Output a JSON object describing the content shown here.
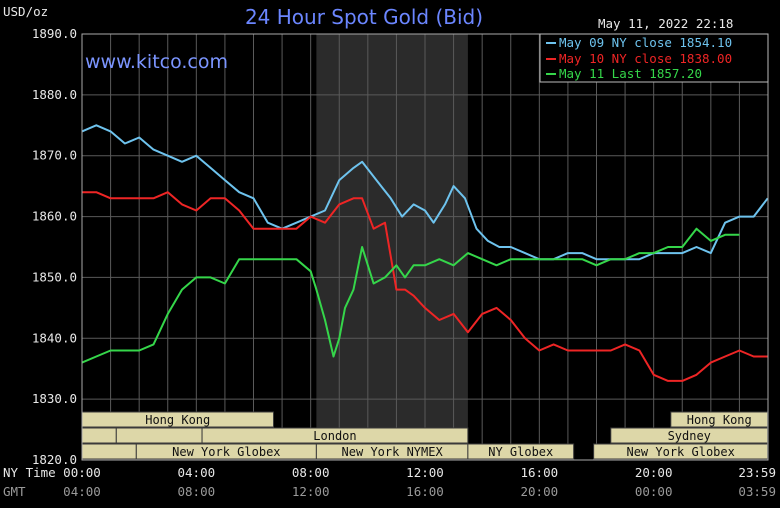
{
  "header": {
    "title": "24 Hour Spot Gold (Bid)",
    "website": "www.kitco.com",
    "timestamp": "May 11, 2022 22:18",
    "unit_label": "USD/oz"
  },
  "chart_data": {
    "type": "line",
    "title": "24 Hour Spot Gold (Bid)",
    "ylabel": "USD/oz",
    "ylim": [
      1820,
      1890
    ],
    "yticks": [
      "1890.0",
      "1880.0",
      "1870.0",
      "1860.0",
      "1850.0",
      "1840.0",
      "1830.0",
      "1820.0"
    ],
    "xlim": [
      0,
      24
    ],
    "x_tick_hours": [
      0,
      4,
      8,
      12,
      16,
      20,
      24
    ],
    "x_axis_rows": [
      {
        "label": "NY Time",
        "ticks": [
          "00:00",
          "04:00",
          "08:00",
          "12:00",
          "16:00",
          "20:00",
          "23:59"
        ]
      },
      {
        "label": "GMT",
        "ticks": [
          "04:00",
          "08:00",
          "12:00",
          "16:00",
          "20:00",
          "00:00",
          "03:59"
        ]
      }
    ],
    "grid": true,
    "legend_position": "top-right",
    "shaded_region_hours": [
      8.2,
      13.5
    ],
    "series": [
      {
        "name": "May 09 NY close 1854.10",
        "color": "#6ec3ee",
        "x": [
          0,
          0.5,
          1,
          1.5,
          2,
          2.5,
          3,
          3.5,
          4,
          4.5,
          5,
          5.5,
          6,
          6.5,
          7,
          7.5,
          8,
          8.5,
          9,
          9.5,
          9.8,
          10.3,
          10.8,
          11.2,
          11.6,
          12,
          12.3,
          12.7,
          13,
          13.4,
          13.8,
          14.2,
          14.6,
          15,
          15.5,
          16,
          16.5,
          17,
          17.5,
          18,
          18.5,
          19,
          19.5,
          20,
          20.5,
          21,
          21.5,
          22,
          22.5,
          23,
          23.5,
          23.99
        ],
        "y": [
          1874,
          1875,
          1874,
          1872,
          1873,
          1871,
          1870,
          1869,
          1870,
          1868,
          1866,
          1864,
          1863,
          1859,
          1858,
          1859,
          1860,
          1861,
          1866,
          1868,
          1869,
          1866,
          1863,
          1860,
          1862,
          1861,
          1859,
          1862,
          1865,
          1863,
          1858,
          1856,
          1855,
          1855,
          1854,
          1853,
          1853,
          1854,
          1854,
          1853,
          1853,
          1853,
          1853,
          1854,
          1854,
          1854,
          1855,
          1854,
          1859,
          1860,
          1860,
          1863
        ]
      },
      {
        "name": "May 10 NY close 1838.00",
        "color": "#ee2525",
        "x": [
          0,
          0.5,
          1,
          1.5,
          2,
          2.5,
          3,
          3.5,
          4,
          4.5,
          5,
          5.5,
          6,
          6.5,
          7,
          7.5,
          8,
          8.5,
          9,
          9.5,
          9.8,
          10.2,
          10.6,
          11,
          11.3,
          11.6,
          12,
          12.5,
          13,
          13.5,
          14,
          14.5,
          15,
          15.5,
          16,
          16.5,
          17,
          17.5,
          18,
          18.5,
          19,
          19.5,
          20,
          20.5,
          21,
          21.5,
          22,
          22.5,
          23,
          23.5,
          23.99
        ],
        "y": [
          1864,
          1864,
          1863,
          1863,
          1863,
          1863,
          1864,
          1862,
          1861,
          1863,
          1863,
          1861,
          1858,
          1858,
          1858,
          1858,
          1860,
          1859,
          1862,
          1863,
          1863,
          1858,
          1859,
          1848,
          1848,
          1847,
          1845,
          1843,
          1844,
          1841,
          1844,
          1845,
          1843,
          1840,
          1838,
          1839,
          1838,
          1838,
          1838,
          1838,
          1839,
          1838,
          1834,
          1833,
          1833,
          1834,
          1836,
          1837,
          1838,
          1837,
          1837
        ]
      },
      {
        "name": "May 11 Last 1857.20",
        "color": "#35d64a",
        "x": [
          0,
          0.5,
          1,
          1.5,
          2,
          2.5,
          3,
          3.5,
          4,
          4.5,
          5,
          5.5,
          6,
          6.5,
          7,
          7.5,
          8,
          8.2,
          8.5,
          8.8,
          9,
          9.2,
          9.5,
          9.8,
          10.2,
          10.6,
          11,
          11.3,
          11.6,
          12,
          12.5,
          13,
          13.5,
          14,
          14.5,
          15,
          15.5,
          16,
          16.5,
          17,
          17.5,
          18,
          18.5,
          19,
          19.5,
          20,
          20.5,
          21,
          21.5,
          22,
          22.5,
          23
        ],
        "y": [
          1836,
          1837,
          1838,
          1838,
          1838,
          1839,
          1844,
          1848,
          1850,
          1850,
          1849,
          1853,
          1853,
          1853,
          1853,
          1853,
          1851,
          1848,
          1843,
          1837,
          1840,
          1845,
          1848,
          1855,
          1849,
          1850,
          1852,
          1850,
          1852,
          1852,
          1853,
          1852,
          1854,
          1853,
          1852,
          1853,
          1853,
          1853,
          1853,
          1853,
          1853,
          1852,
          1853,
          1853,
          1854,
          1854,
          1855,
          1855,
          1858,
          1856,
          1857,
          1857
        ]
      }
    ]
  },
  "sessions": [
    {
      "label": "Hong Kong",
      "start_hour": 0,
      "end_hour": 6.7,
      "row": 0
    },
    {
      "label": "",
      "start_hour": 0,
      "end_hour": 1.2,
      "row": 1
    },
    {
      "label": "",
      "start_hour": 1.2,
      "end_hour": 4.2,
      "row": 1
    },
    {
      "label": "London",
      "start_hour": 4.2,
      "end_hour": 13.5,
      "row": 1
    },
    {
      "label": "",
      "start_hour": 0,
      "end_hour": 1.9,
      "row": 2
    },
    {
      "label": "New York Globex",
      "start_hour": 1.9,
      "end_hour": 8.2,
      "row": 2
    },
    {
      "label": "New York NYMEX",
      "start_hour": 8.2,
      "end_hour": 13.5,
      "row": 2
    },
    {
      "label": "NY Globex",
      "start_hour": 13.5,
      "end_hour": 17.2,
      "row": 2
    },
    {
      "label": "Hong Kong",
      "start_hour": 20.6,
      "end_hour": 23.99,
      "row": 0
    },
    {
      "label": "Sydney",
      "start_hour": 18.5,
      "end_hour": 23.99,
      "row": 1
    },
    {
      "label": "New York Globex",
      "start_hour": 17.9,
      "end_hour": 23.99,
      "row": 2
    }
  ]
}
